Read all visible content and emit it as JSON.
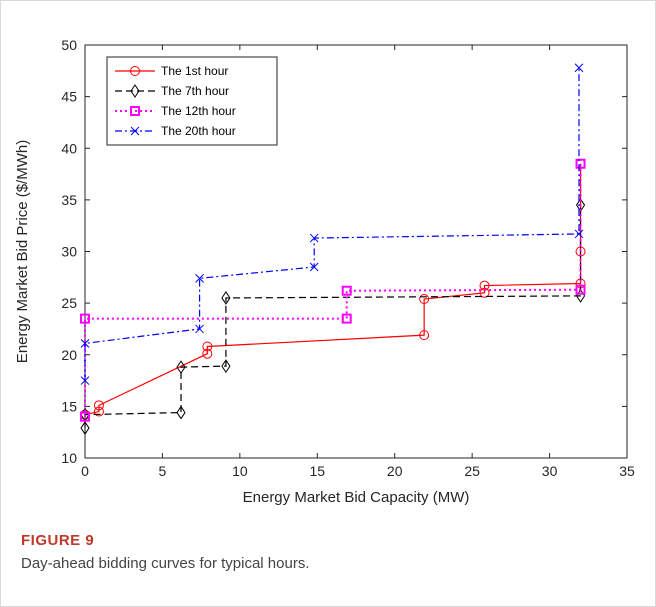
{
  "figure": {
    "label": "FIGURE 9",
    "caption": "Day-ahead bidding curves for typical hours."
  },
  "chart_data": {
    "type": "line",
    "xlabel": "Energy Market Bid Capacity (MW)",
    "ylabel": "Energy Market Bid Price ($/MWh)",
    "xlim": [
      0,
      35
    ],
    "ylim": [
      10,
      50
    ],
    "xticks": [
      0,
      5,
      10,
      15,
      20,
      25,
      30,
      35
    ],
    "yticks": [
      10,
      15,
      20,
      25,
      30,
      35,
      40,
      45,
      50
    ],
    "grid": false,
    "legend_position": "top-left",
    "series": [
      {
        "name": "The 1st hour",
        "color": "#ff0000",
        "dash": "solid",
        "marker": "circle",
        "points": [
          [
            0,
            14.2
          ],
          [
            0.9,
            14.5
          ],
          [
            0.9,
            15.1
          ],
          [
            7.9,
            20.1
          ],
          [
            7.9,
            20.8
          ],
          [
            21.9,
            21.9
          ],
          [
            21.9,
            25.4
          ],
          [
            25.8,
            26.0
          ],
          [
            25.8,
            26.7
          ],
          [
            32.0,
            26.9
          ],
          [
            32.0,
            30.0
          ],
          [
            32.0,
            38.5
          ]
        ]
      },
      {
        "name": "The 7th hour",
        "color": "#000000",
        "dash": "dashed",
        "marker": "diamond",
        "points": [
          [
            0,
            12.9
          ],
          [
            0,
            14.2
          ],
          [
            6.2,
            14.4
          ],
          [
            6.2,
            18.8
          ],
          [
            9.1,
            18.9
          ],
          [
            9.1,
            25.5
          ],
          [
            32.0,
            25.7
          ],
          [
            32.0,
            34.5
          ]
        ]
      },
      {
        "name": "The 12th hour",
        "color": "#ff00ff",
        "dash": "dotted",
        "marker": "square",
        "points": [
          [
            0,
            14.0
          ],
          [
            0,
            23.5
          ],
          [
            16.9,
            23.5
          ],
          [
            16.9,
            26.2
          ],
          [
            32.0,
            26.3
          ],
          [
            32.0,
            38.5
          ]
        ]
      },
      {
        "name": "The 20th hour",
        "color": "#0000ff",
        "dash": "dashdot",
        "marker": "x",
        "points": [
          [
            0,
            17.5
          ],
          [
            0,
            21.1
          ],
          [
            7.4,
            22.5
          ],
          [
            7.4,
            27.4
          ],
          [
            14.8,
            28.5
          ],
          [
            14.8,
            31.3
          ],
          [
            31.9,
            31.7
          ],
          [
            31.9,
            47.8
          ]
        ]
      }
    ]
  }
}
